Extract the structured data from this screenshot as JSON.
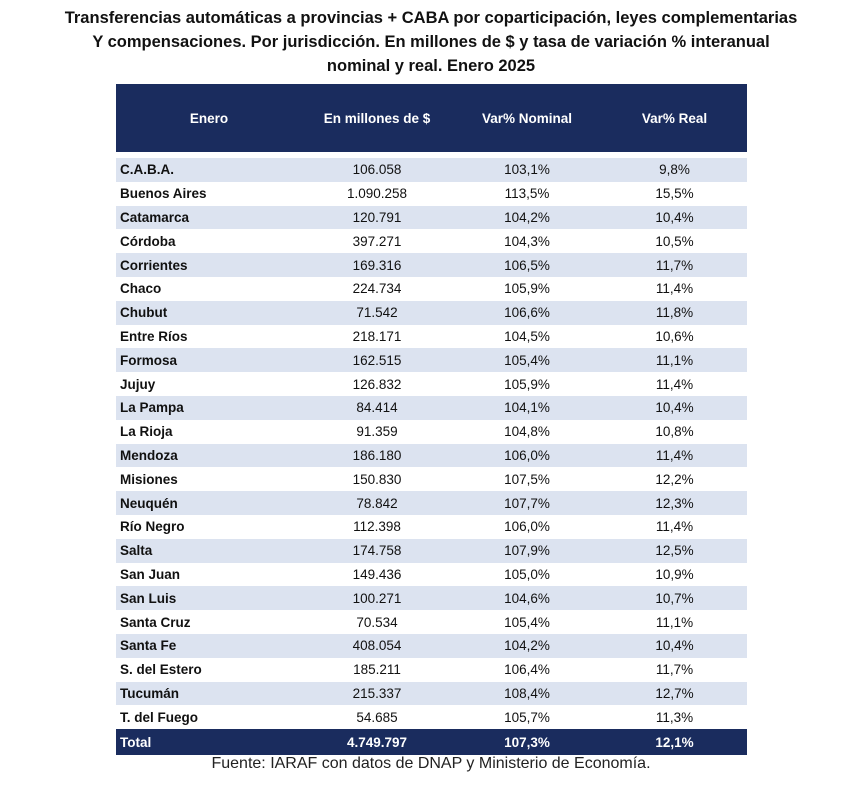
{
  "title_lines": [
    "Transferencias automáticas  a provincias  + CABA por coparticipación,  leyes complementarias",
    "Y compensaciones.  Por jurisdicción.  En millones de $ y tasa de variación % interanual",
    "nominal  y real.  Enero  2025"
  ],
  "colors": {
    "header_bg": "#1a2c5e",
    "stripe_bg": "#dce3f0"
  },
  "chart_data": {
    "type": "table",
    "columns": [
      "Enero",
      "En millones de $",
      "Var% Nominal",
      "Var% Real"
    ],
    "rows": [
      [
        "C.A.B.A.",
        "106.058",
        "103,1%",
        "9,8%"
      ],
      [
        "Buenos Aires",
        "1.090.258",
        "113,5%",
        "15,5%"
      ],
      [
        "Catamarca",
        "120.791",
        "104,2%",
        "10,4%"
      ],
      [
        "Córdoba",
        "397.271",
        "104,3%",
        "10,5%"
      ],
      [
        "Corrientes",
        "169.316",
        "106,5%",
        "11,7%"
      ],
      [
        "Chaco",
        "224.734",
        "105,9%",
        "11,4%"
      ],
      [
        "Chubut",
        "71.542",
        "106,6%",
        "11,8%"
      ],
      [
        "Entre Ríos",
        "218.171",
        "104,5%",
        "10,6%"
      ],
      [
        "Formosa",
        "162.515",
        "105,4%",
        "11,1%"
      ],
      [
        "Jujuy",
        "126.832",
        "105,9%",
        "11,4%"
      ],
      [
        "La Pampa",
        "84.414",
        "104,1%",
        "10,4%"
      ],
      [
        "La Rioja",
        "91.359",
        "104,8%",
        "10,8%"
      ],
      [
        "Mendoza",
        "186.180",
        "106,0%",
        "11,4%"
      ],
      [
        "Misiones",
        "150.830",
        "107,5%",
        "12,2%"
      ],
      [
        "Neuquén",
        "78.842",
        "107,7%",
        "12,3%"
      ],
      [
        "Río Negro",
        "112.398",
        "106,0%",
        "11,4%"
      ],
      [
        "Salta",
        "174.758",
        "107,9%",
        "12,5%"
      ],
      [
        "San Juan",
        "149.436",
        "105,0%",
        "10,9%"
      ],
      [
        "San Luis",
        "100.271",
        "104,6%",
        "10,7%"
      ],
      [
        "Santa Cruz",
        "70.534",
        "105,4%",
        "11,1%"
      ],
      [
        "Santa Fe",
        "408.054",
        "104,2%",
        "10,4%"
      ],
      [
        "S. del Estero",
        "185.211",
        "106,4%",
        "11,7%"
      ],
      [
        "Tucumán",
        "215.337",
        "108,4%",
        "12,7%"
      ],
      [
        "T. del Fuego",
        "54.685",
        "105,7%",
        "11,3%"
      ]
    ],
    "total": [
      "Total",
      "4.749.797",
      "107,3%",
      "12,1%"
    ]
  },
  "source": "Fuente: IARAF con datos de DNAP y Ministerio de Economía."
}
